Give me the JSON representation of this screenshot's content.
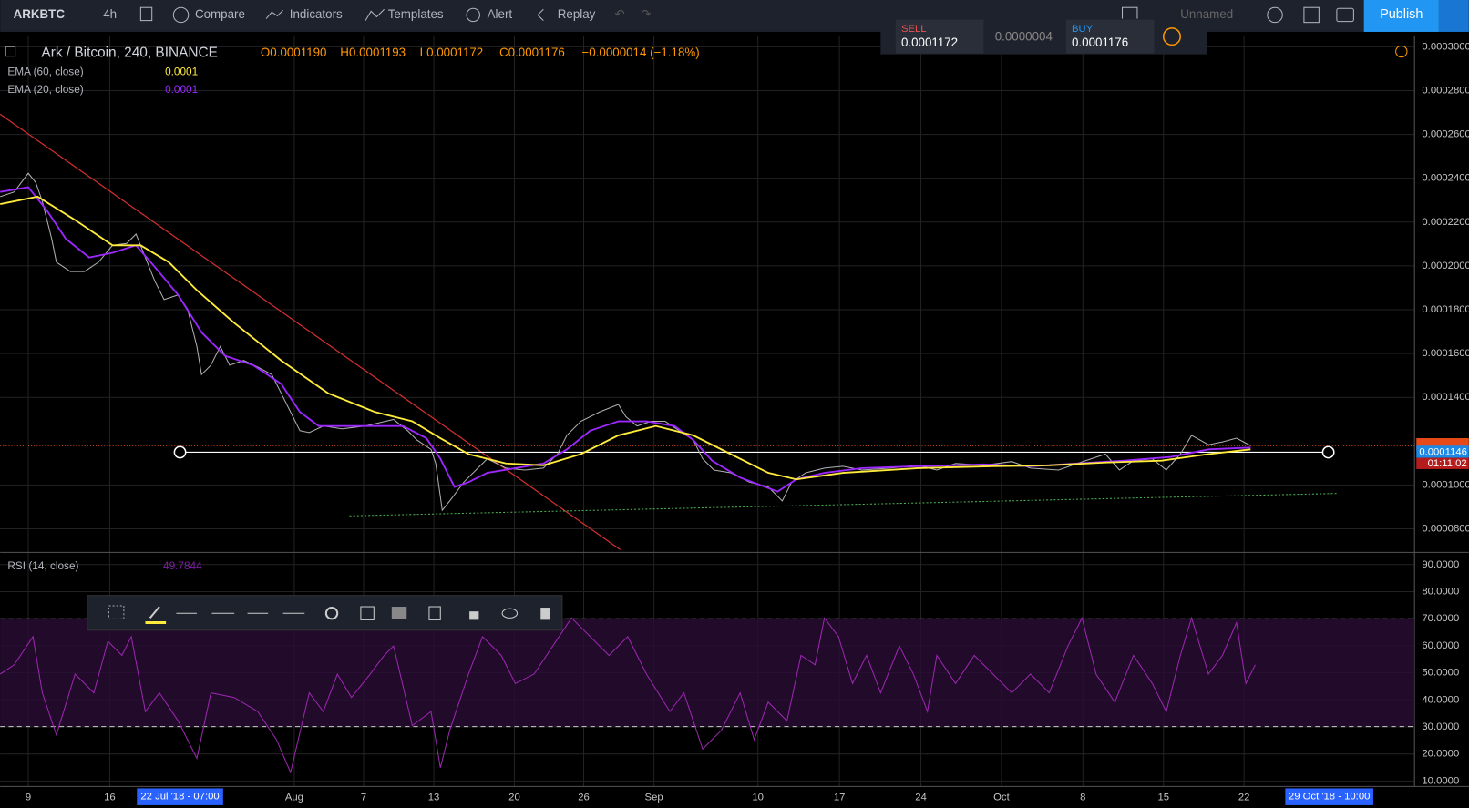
{
  "toolbar": {
    "symbol": "ARKBTC",
    "interval": "4h",
    "compare": "Compare",
    "indicators": "Indicators",
    "templates": "Templates",
    "alert": "Alert",
    "replay": "Replay",
    "layout_name": "Unnamed",
    "publish": "Publish"
  },
  "trade_panel": {
    "sell_label": "SELL",
    "sell_price": "0.0001172",
    "spread": "0.0000004",
    "buy_label": "BUY",
    "buy_price": "0.0001176"
  },
  "legend": {
    "title": "Ark / Bitcoin, 240, BINANCE",
    "open": "O0.0001190",
    "high": "H0.0001193",
    "low": "L0.0001172",
    "close": "C0.0001176",
    "change": "−0.0000014 (−1.18%)"
  },
  "indicators": [
    {
      "name": "EMA (60, close)",
      "value": "0.0001"
    },
    {
      "name": "EMA (20, close)",
      "value": "0.0001"
    },
    {
      "name": "RSI (14, close)",
      "value": "49.7844"
    }
  ],
  "price_axis": [
    "0.0003000",
    "0.0002800",
    "0.0002600",
    "0.0002400",
    "0.0002200",
    "0.0002000",
    "0.0001800",
    "0.0001600",
    "0.0001400",
    "0.0001000",
    "0.0000800"
  ],
  "price_labels": {
    "current": "0.0001146",
    "countdown": "01:11:02"
  },
  "rsi_axis": [
    "90.0000",
    "80.0000",
    "70.0000",
    "60.0000",
    "50.0000",
    "40.0000",
    "30.0000",
    "20.0000",
    "10.0000"
  ],
  "time_axis": [
    "9",
    "16",
    "Aug",
    "7",
    "13",
    "20",
    "26",
    "Sep",
    "10",
    "17",
    "24",
    "Oct",
    "8",
    "15",
    "22"
  ],
  "time_range": {
    "start": "22 Jul '18 - 07:00",
    "end": "29 Oct '18 - 10:00"
  }
}
